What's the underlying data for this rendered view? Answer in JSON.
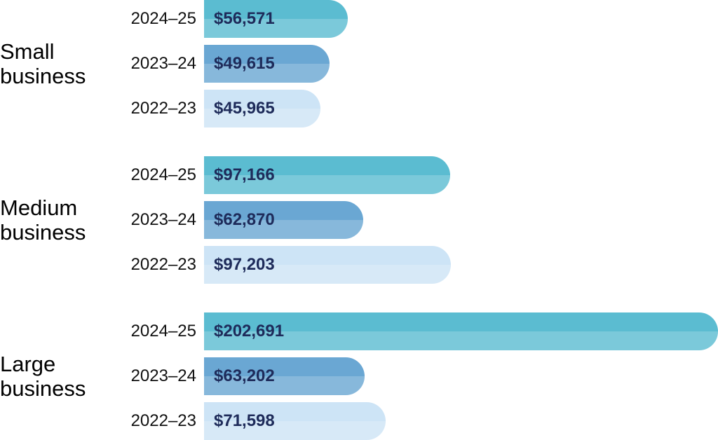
{
  "chart_data": {
    "type": "bar",
    "orientation": "horizontal",
    "categories": [
      "Small business",
      "Medium business",
      "Large business"
    ],
    "series": [
      {
        "name": "2024–25",
        "color": "#5bbcd1",
        "values": [
          56571,
          97166,
          202691
        ],
        "value_labels": [
          "$56,571",
          "$97,166",
          "$202,691"
        ]
      },
      {
        "name": "2023–24",
        "color": "#6aa7d3",
        "values": [
          49615,
          62870,
          63202
        ],
        "value_labels": [
          "$49,615",
          "$62,870",
          "$63,202"
        ]
      },
      {
        "name": "2022–23",
        "color": "#cde4f6",
        "values": [
          45965,
          97203,
          71598
        ],
        "value_labels": [
          "$45,965",
          "$97,203",
          "$71,598"
        ]
      }
    ]
  }
}
